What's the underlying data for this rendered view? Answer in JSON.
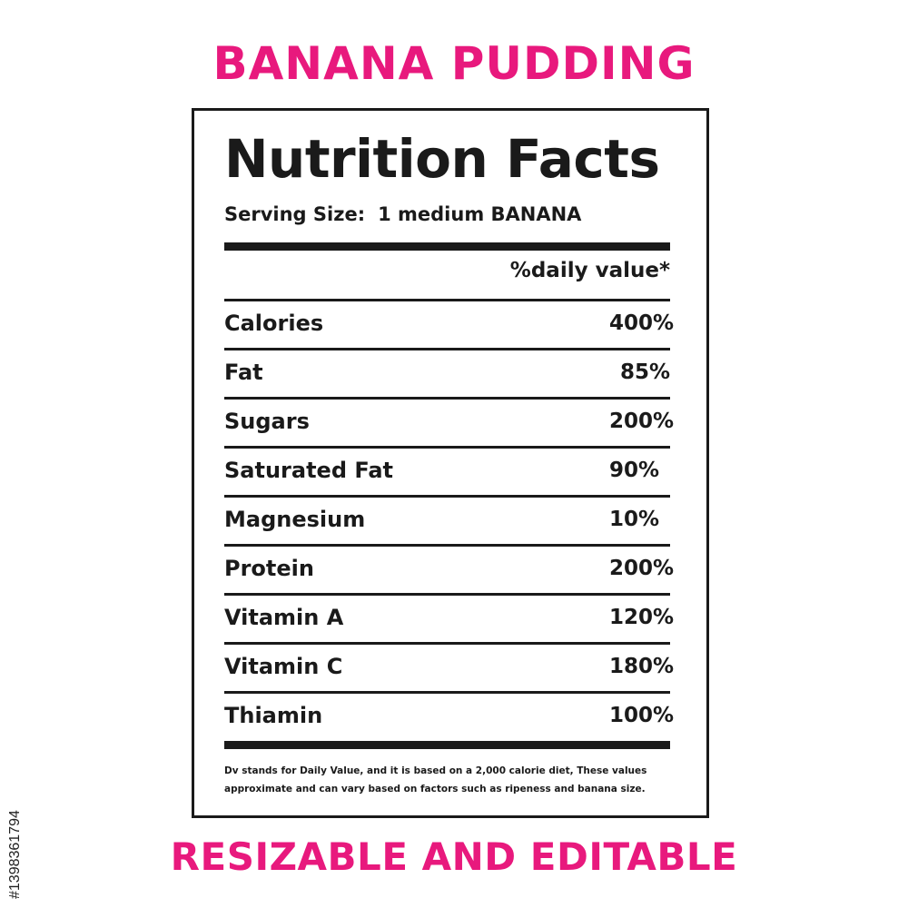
{
  "header": {
    "title": "BANANA PUDDING"
  },
  "label": {
    "title": "Nutrition Facts",
    "serving_label": "Serving Size:",
    "serving_value": "1 medium BANANA",
    "dv_header": "%daily value*",
    "nutrients": [
      {
        "name": "Calories",
        "value": "400%"
      },
      {
        "name": "Fat",
        "value": "85%"
      },
      {
        "name": "Sugars",
        "value": "200%"
      },
      {
        "name": "Saturated Fat",
        "value": "90%"
      },
      {
        "name": "Magnesium",
        "value": "10%"
      },
      {
        "name": "Protein",
        "value": "200%"
      },
      {
        "name": "Vitamin A",
        "value": "120%"
      },
      {
        "name": "Vitamin C",
        "value": "180%"
      },
      {
        "name": "Thiamin",
        "value": "100%"
      }
    ],
    "footnote_line1": "Dv stands for Daily Value, and it is based on a 2,000 calorie diet, These values",
    "footnote_line2": "approximate and can vary based on factors such as ripeness and banana size."
  },
  "footer": {
    "title": "RESIZABLE AND EDITABLE"
  },
  "stock_id": "#1398361794",
  "colors": {
    "accent": "#e8197d",
    "text": "#1a1a1a",
    "background": "#ffffff"
  }
}
